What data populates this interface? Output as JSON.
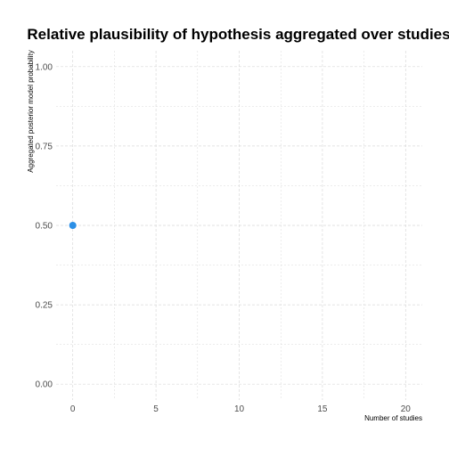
{
  "chart_data": {
    "type": "scatter",
    "title": "Relative plausibility of hypothesis aggregated over studies",
    "xlabel": "Number of studies",
    "ylabel": "Aggregated posterior model probability",
    "xlim": [
      -1,
      21
    ],
    "ylim": [
      -0.05,
      1.05
    ],
    "x_ticks": [
      0,
      5,
      10,
      15,
      20
    ],
    "x_tick_labels": [
      "0",
      "5",
      "10",
      "15",
      "20"
    ],
    "y_ticks": [
      0,
      0.25,
      0.5,
      0.75,
      1
    ],
    "y_tick_labels": [
      "0.00",
      "0.25",
      "0.50",
      "0.75",
      "1.00"
    ],
    "grid": true,
    "points": [
      {
        "x": 0,
        "y": 0.5
      }
    ],
    "point_color": "#2b8fe6",
    "grid_color": "#d9d9d9"
  }
}
